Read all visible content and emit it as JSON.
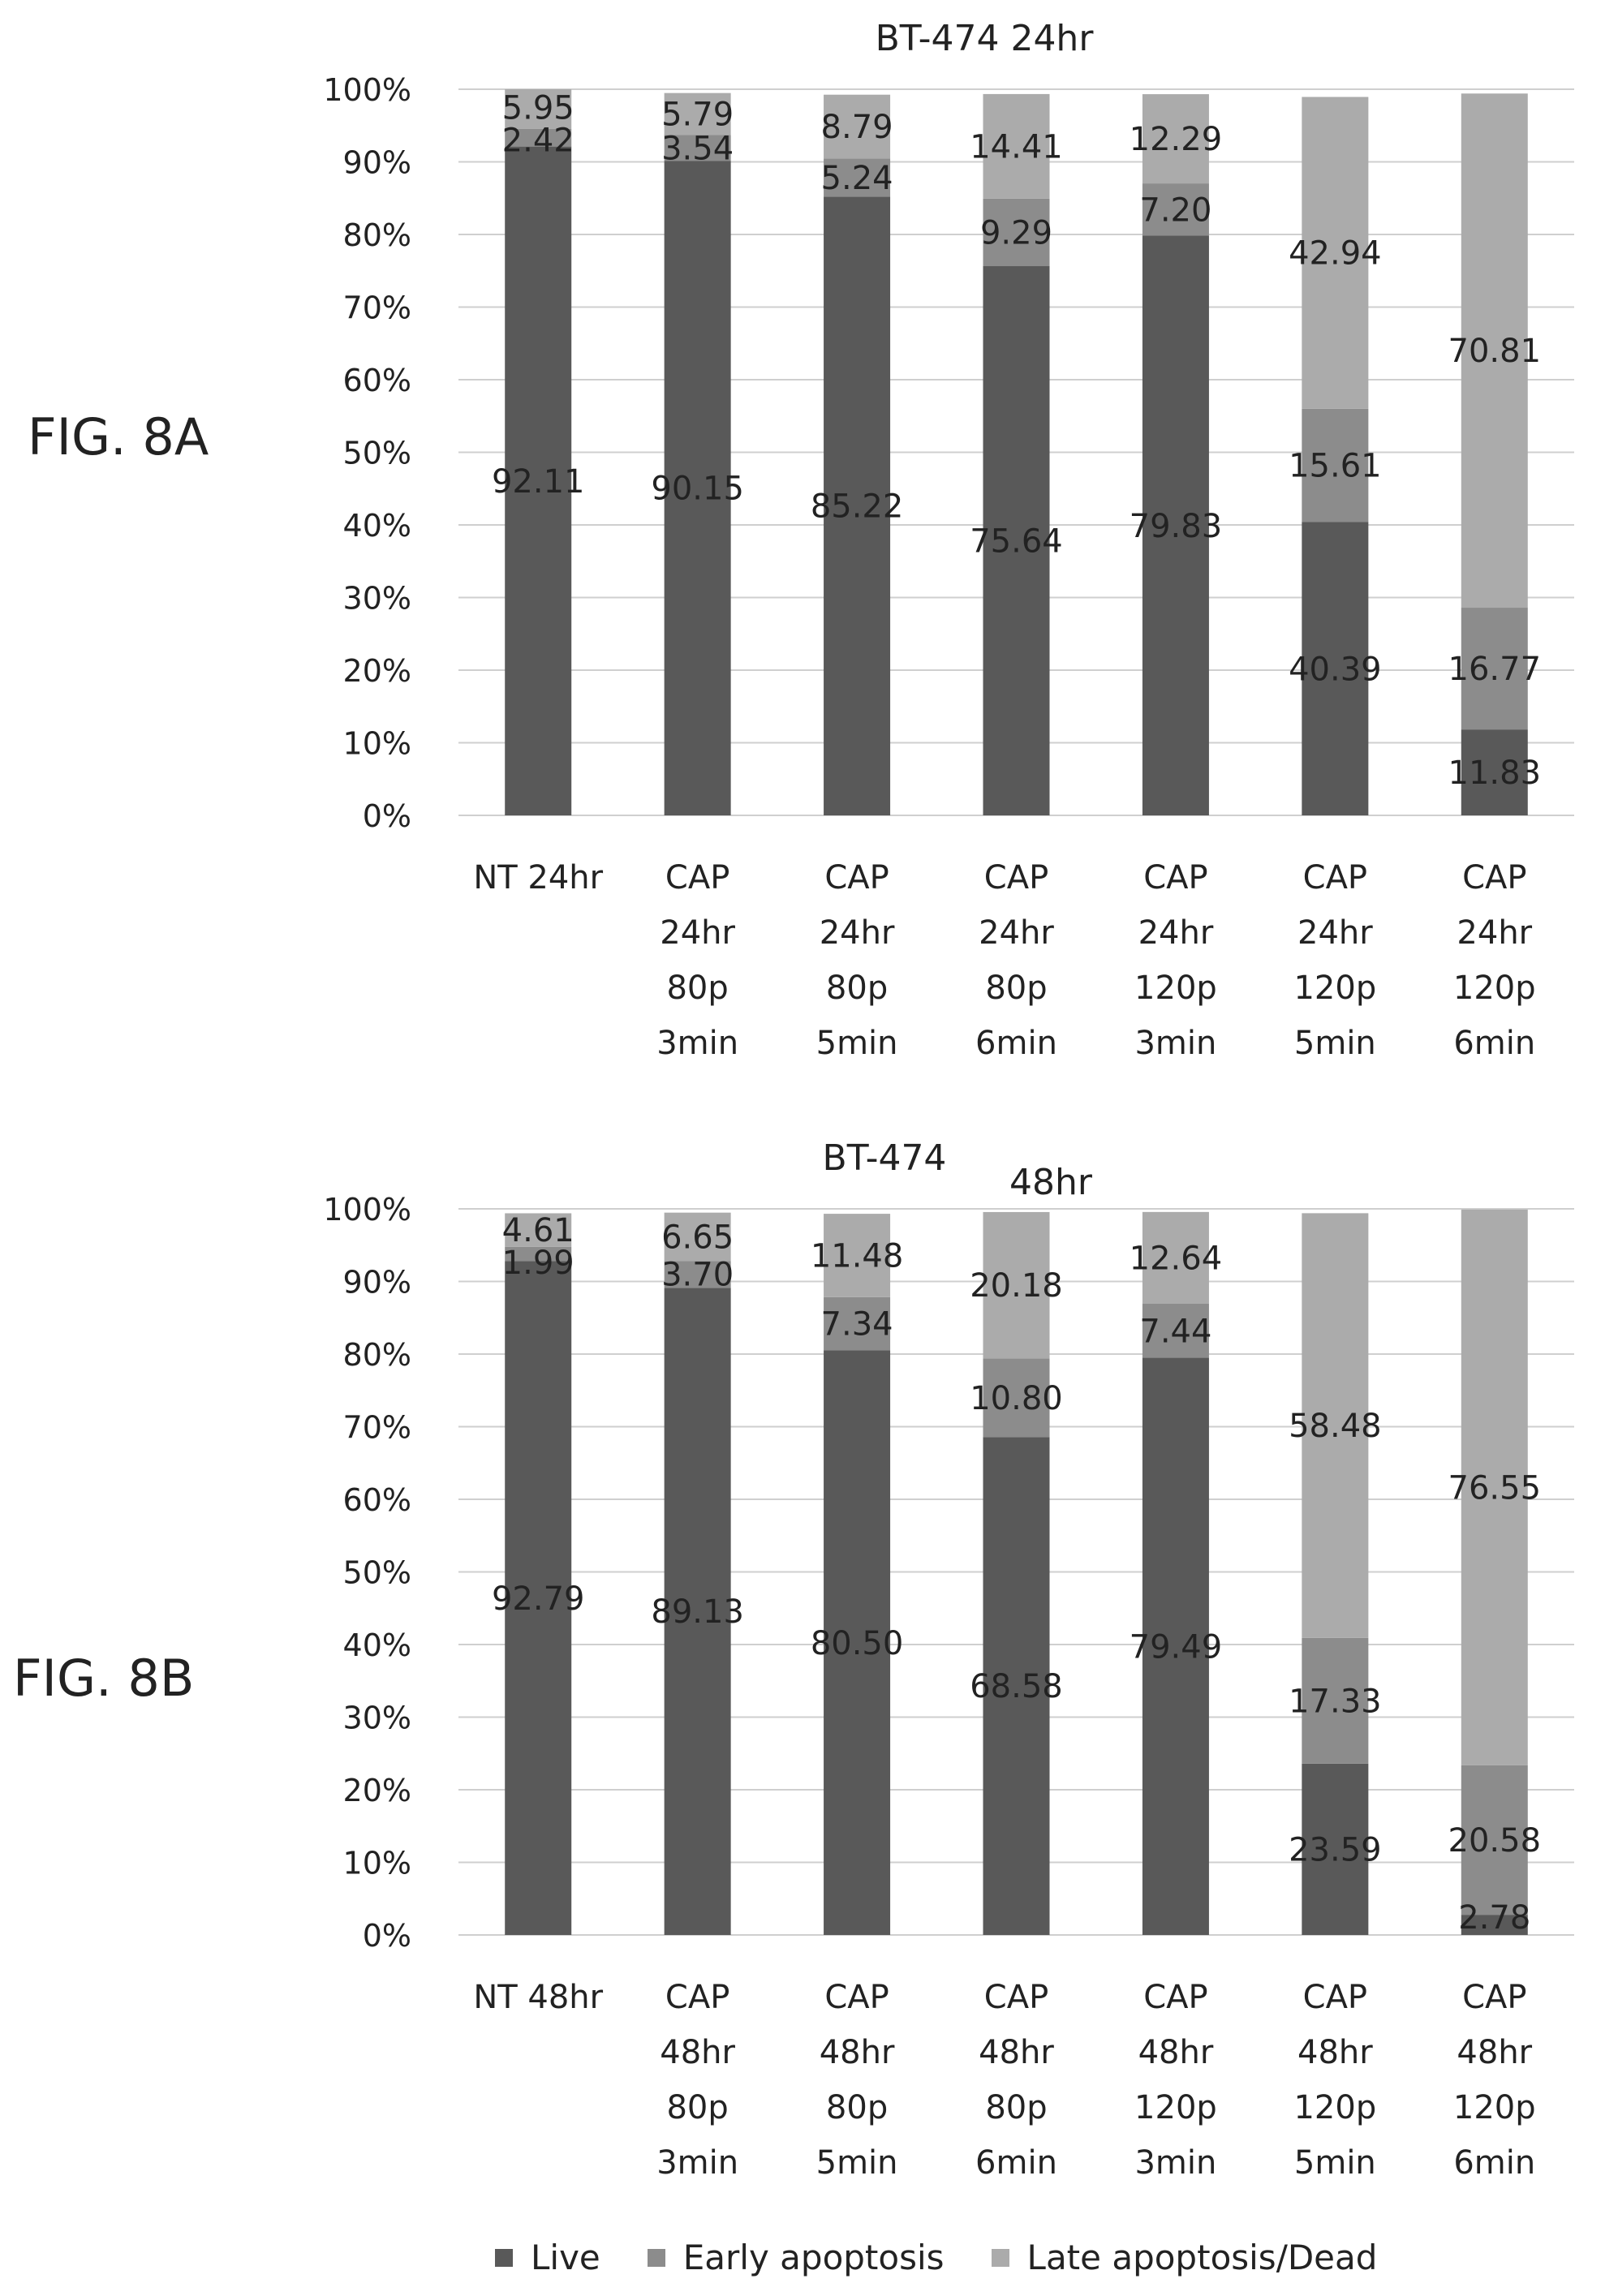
{
  "figure_labels": [
    "FIG. 8A",
    "FIG. 8B"
  ],
  "legend": [
    {
      "label": "Live",
      "color": "#595959"
    },
    {
      "label": "Early apoptosis",
      "color": "#8c8c8c"
    },
    {
      "label": "Late apoptosis/Dead",
      "color": "#ababab"
    }
  ],
  "chart_data": [
    {
      "type": "bar",
      "stacked": true,
      "title": "BT-474 24hr",
      "xlabel": "",
      "ylabel": "",
      "ylim": [
        0,
        100
      ],
      "yticks": [
        "0%",
        "10%",
        "20%",
        "30%",
        "40%",
        "50%",
        "60%",
        "70%",
        "80%",
        "90%",
        "100%"
      ],
      "grid": true,
      "categories": [
        [
          "NT 24hr"
        ],
        [
          "CAP",
          "24hr",
          "80p",
          "3min"
        ],
        [
          "CAP",
          "24hr",
          "80p",
          "5min"
        ],
        [
          "CAP",
          "24hr",
          "80p",
          "6min"
        ],
        [
          "CAP",
          "24hr",
          "120p",
          "3min"
        ],
        [
          "CAP",
          "24hr",
          "120p",
          "5min"
        ],
        [
          "CAP",
          "24hr",
          "120p",
          "6min"
        ]
      ],
      "series": [
        {
          "name": "Live",
          "values": [
            92.11,
            90.15,
            85.22,
            75.64,
            79.83,
            40.39,
            11.83
          ],
          "labels": [
            "92.11",
            "90.15",
            "85.22",
            "75.64",
            "79.83",
            "40.39",
            "11.83"
          ]
        },
        {
          "name": "Early apoptosis",
          "values": [
            2.42,
            3.54,
            5.24,
            9.29,
            7.2,
            15.61,
            16.77
          ],
          "labels": [
            "2.42",
            "3.54",
            "5.24",
            "9.29",
            "7.20",
            "15.61",
            "16.77"
          ]
        },
        {
          "name": "Late apoptosis/Dead",
          "values": [
            5.95,
            5.79,
            8.79,
            14.41,
            12.29,
            42.94,
            70.81
          ],
          "labels": [
            "5.95",
            "5.79",
            "8.79",
            "14.41",
            "12.29",
            "42.94",
            "70.81"
          ]
        }
      ]
    },
    {
      "type": "bar",
      "stacked": true,
      "title": "BT-474 48hr",
      "title_parts": [
        "BT-474",
        "48hr"
      ],
      "xlabel": "",
      "ylabel": "",
      "ylim": [
        0,
        100
      ],
      "yticks": [
        "0%",
        "10%",
        "20%",
        "30%",
        "40%",
        "50%",
        "60%",
        "70%",
        "80%",
        "90%",
        "100%"
      ],
      "grid": true,
      "categories": [
        [
          "NT 48hr"
        ],
        [
          "CAP",
          "48hr",
          "80p",
          "3min"
        ],
        [
          "CAP",
          "48hr",
          "80p",
          "5min"
        ],
        [
          "CAP",
          "48hr",
          "80p",
          "6min"
        ],
        [
          "CAP",
          "48hr",
          "120p",
          "3min"
        ],
        [
          "CAP",
          "48hr",
          "120p",
          "5min"
        ],
        [
          "CAP",
          "48hr",
          "120p",
          "6min"
        ]
      ],
      "series": [
        {
          "name": "Live",
          "values": [
            92.79,
            89.13,
            80.5,
            68.58,
            79.49,
            23.59,
            2.78
          ],
          "labels": [
            "92.79",
            "89.13",
            "80.50",
            "68.58",
            "79.49",
            "23.59",
            "2.78"
          ]
        },
        {
          "name": "Early apoptosis",
          "values": [
            1.99,
            3.7,
            7.34,
            10.8,
            7.44,
            17.33,
            20.58
          ],
          "labels": [
            "1.99",
            "3.70",
            "7.34",
            "10.80",
            "7.44",
            "17.33",
            "20.58"
          ]
        },
        {
          "name": "Late apoptosis/Dead",
          "values": [
            4.61,
            6.65,
            11.48,
            20.18,
            12.64,
            58.48,
            76.55
          ],
          "labels": [
            "4.61",
            "6.65",
            "11.48",
            "20.18",
            "12.64",
            "58.48",
            "76.55"
          ]
        }
      ]
    }
  ]
}
